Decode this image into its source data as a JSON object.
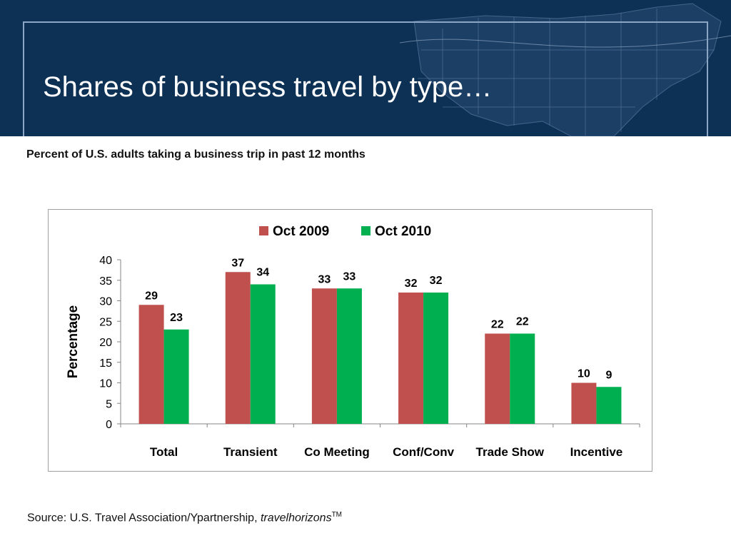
{
  "slide": {
    "title": "Shares of business travel by type…",
    "subtitle": "Percent of U.S. adults taking a business trip in past 12 months",
    "source_prefix": "Source:  U.S. Travel Association/Ypartnership, ",
    "source_italic": "travelhorizons",
    "source_sup": "TM"
  },
  "colors": {
    "header_bg": "#0d3055",
    "series_2009": "#c0504d",
    "series_2010": "#00b050"
  },
  "chart_data": {
    "type": "bar",
    "categories": [
      "Total",
      "Transient",
      "Co Meeting",
      "Conf/Conv",
      "Trade Show",
      "Incentive"
    ],
    "series": [
      {
        "name": "Oct 2009",
        "values": [
          29,
          37,
          33,
          32,
          22,
          10
        ],
        "color": "#c0504d"
      },
      {
        "name": "Oct 2010",
        "values": [
          23,
          34,
          33,
          32,
          22,
          9
        ],
        "color": "#00b050"
      }
    ],
    "title": "",
    "xlabel": "",
    "ylabel": "Percentage",
    "ylim": [
      0,
      40
    ],
    "yticks": [
      0,
      5,
      10,
      15,
      20,
      25,
      30,
      35,
      40
    ],
    "legend": "top-center",
    "grid": false
  }
}
